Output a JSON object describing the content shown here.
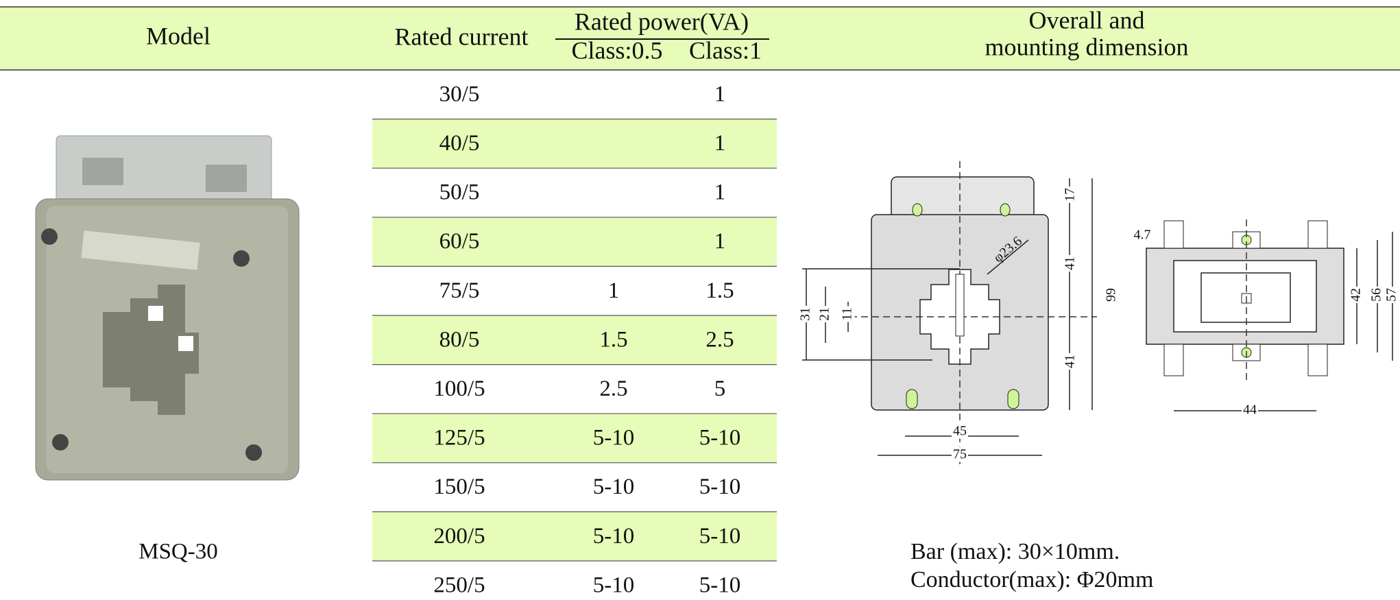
{
  "header": {
    "model": "Model",
    "rated_current": "Rated current",
    "rated_power": "Rated power(VA)",
    "class_05": "Class:0.5",
    "class_1": "Class:1",
    "dimension": [
      "Overall and",
      "mounting dimension"
    ]
  },
  "table": {
    "rows": [
      [
        "30/5",
        null,
        "1"
      ],
      [
        "40/5",
        null,
        "1"
      ],
      [
        "50/5",
        null,
        "1"
      ],
      [
        "60/5",
        null,
        "1"
      ],
      [
        "75/5",
        "1",
        "1.5"
      ],
      [
        "80/5",
        "1.5",
        "2.5"
      ],
      [
        "100/5",
        "2.5",
        "5"
      ],
      [
        "125/5",
        "5-10",
        "5-10"
      ],
      [
        "150/5",
        "5-10",
        "5-10"
      ],
      [
        "200/5",
        "5-10",
        "5-10"
      ],
      [
        "250/5",
        "5-10",
        "5-10"
      ]
    ]
  },
  "model": "MSQ-30",
  "notes": [
    "Bar (max): 30×10mm.",
    "Conductor(max): Φ20mm"
  ],
  "drawing": {
    "labels": [
      "17",
      "41",
      "99",
      "41",
      "φ23.6",
      "31",
      "21",
      "11",
      "45",
      "75",
      "4.7",
      "42",
      "56",
      "57",
      "44"
    ]
  }
}
